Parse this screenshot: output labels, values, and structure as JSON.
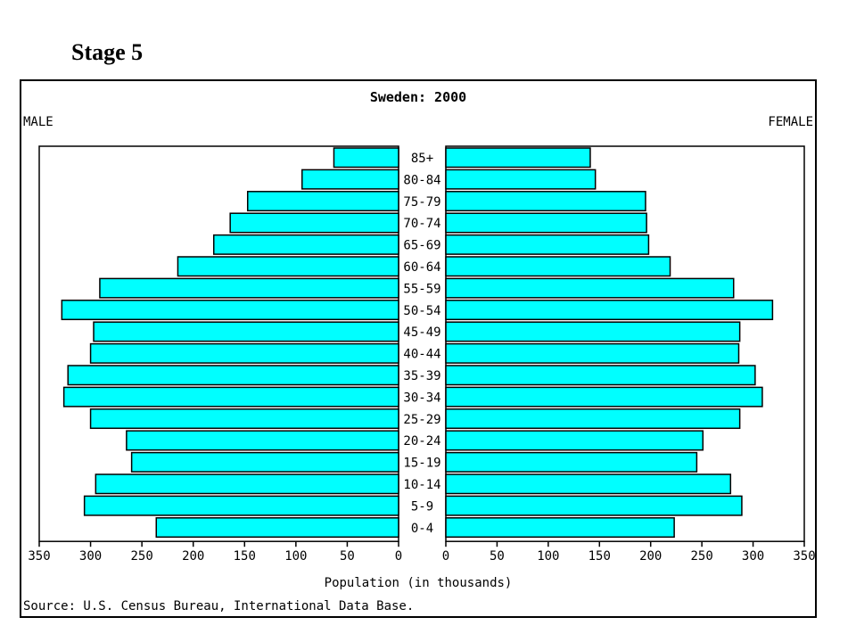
{
  "slide": {
    "title": "Stage 5"
  },
  "chart_data": {
    "type": "bar",
    "orientation": "horizontal-population-pyramid",
    "title": "Sweden: 2000",
    "left_label": "MALE",
    "right_label": "FEMALE",
    "xlabel": "Population (in thousands)",
    "source": "Source: U.S. Census Bureau, International Data Base.",
    "xlim": [
      0,
      350
    ],
    "ticks": [
      350,
      300,
      250,
      200,
      150,
      100,
      50,
      0
    ],
    "right_ticks": [
      0,
      50,
      100,
      150,
      200,
      250,
      300,
      350
    ],
    "bar_color": "#00ffff",
    "categories": [
      "85+",
      "80-84",
      "75-79",
      "70-74",
      "65-69",
      "60-64",
      "55-59",
      "50-54",
      "45-49",
      "40-44",
      "35-39",
      "30-34",
      "25-29",
      "20-24",
      "15-19",
      "10-14",
      "5-9",
      "0-4"
    ],
    "series": [
      {
        "name": "MALE",
        "values": [
          63,
          94,
          147,
          164,
          180,
          215,
          291,
          328,
          297,
          300,
          322,
          326,
          300,
          265,
          260,
          295,
          306,
          236
        ]
      },
      {
        "name": "FEMALE",
        "values": [
          141,
          146,
          195,
          196,
          198,
          219,
          281,
          319,
          287,
          286,
          302,
          309,
          287,
          251,
          245,
          278,
          289,
          223
        ]
      }
    ]
  }
}
